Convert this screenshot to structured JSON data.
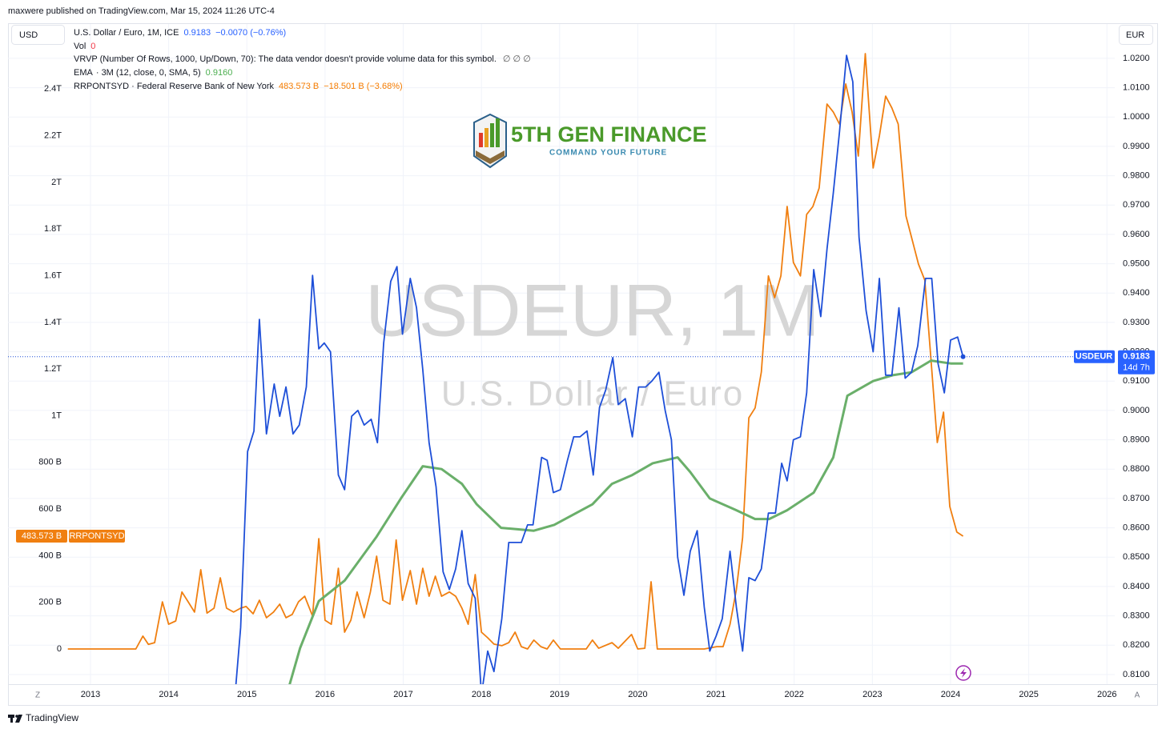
{
  "chart_data": {
    "type": "line",
    "header": "maxwere published on TradingView.com, Mar 15, 2024 11:26 UTC-4",
    "footer": "TradingView",
    "left_unit": "USD",
    "right_unit": "EUR",
    "watermark": [
      "USDEUR, 1M",
      "U.S. Dollar / Euro"
    ],
    "logo": {
      "title": "5TH GEN FINANCE",
      "subtitle": "COMMAND YOUR FUTURE"
    },
    "corner_labels": [
      "Z",
      "A"
    ],
    "legend": [
      {
        "text": "U.S. Dollar / Euro, 1M, ICE",
        "value": "0.9183",
        "change": "−0.0070 (−0.76%)"
      },
      {
        "text": "Vol",
        "value": "0"
      },
      {
        "text": "VRVP (Number Of Rows, 1000, Up/Down, 70): The data vendor doesn't provide volume data for this symbol.",
        "value": "∅  ∅  ∅"
      },
      {
        "text": "· 3M (12, close, 0, SMA, 5)",
        "value": "0.9160"
      },
      {
        "text": "RRPONTSYD · Federal Reserve Bank of New York",
        "value": "483.573 B",
        "change": "−18.501 B (−3.68%)"
      }
    ],
    "xlim": [
      2011.945,
      2026.1
    ],
    "xticks": [
      2013,
      2014,
      2015,
      2016,
      2017,
      2018,
      2019,
      2020,
      2021,
      2022,
      2023,
      2024,
      2025,
      2026
    ],
    "ylim": [
      -151,
      2679
    ],
    "yticks": [
      0,
      {
        "value": 200,
        "label": "200 B"
      },
      {
        "value": 400,
        "label": "400 B"
      },
      {
        "value": 600,
        "label": "600 B"
      },
      {
        "value": 800,
        "label": "800 B"
      },
      {
        "value": 1000,
        "label": "1T"
      },
      {
        "value": 1200,
        "label": "1.2T"
      },
      {
        "value": 1400,
        "label": "1.4T"
      },
      {
        "value": 1600,
        "label": "1.6T"
      },
      {
        "value": 1800,
        "label": "1.8T"
      },
      {
        "value": 2000,
        "label": "2T"
      },
      {
        "value": 2200,
        "label": "2.2T"
      },
      {
        "value": 2400,
        "label": "2.4T"
      }
    ],
    "y2lim": [
      0.8067,
      1.0317
    ],
    "y2ticks": [
      {
        "value": 0.81,
        "label": "0.8100"
      },
      {
        "value": 0.82,
        "label": "0.8200"
      },
      {
        "value": 0.83,
        "label": "0.8300"
      },
      {
        "value": 0.84,
        "label": "0.8400"
      },
      {
        "value": 0.85,
        "label": "0.8500"
      },
      {
        "value": 0.86,
        "label": "0.8600"
      },
      {
        "value": 0.87,
        "label": "0.8700"
      },
      {
        "value": 0.88,
        "label": "0.8800"
      },
      {
        "value": 0.89,
        "label": "0.8900"
      },
      {
        "value": 0.9,
        "label": "0.9000"
      },
      {
        "value": 0.91,
        "label": "0.9100"
      },
      {
        "value": 0.92,
        "label": "0.9200"
      },
      {
        "value": 0.93,
        "label": "0.9300"
      },
      {
        "value": 0.94,
        "label": "0.9400"
      },
      {
        "value": 0.95,
        "label": "0.9500"
      },
      {
        "value": 0.96,
        "label": "0.9600"
      },
      {
        "value": 0.97,
        "label": "0.9700"
      },
      {
        "value": 0.98,
        "label": "0.9800"
      },
      {
        "value": 0.99,
        "label": "0.9900"
      },
      {
        "value": 1.0,
        "label": "1.0000"
      },
      {
        "value": 1.01,
        "label": "1.0100"
      },
      {
        "value": 1.02,
        "label": "1.0200"
      }
    ],
    "grid": true,
    "series": [
      {
        "name": "USDEUR",
        "color": "#1e4fd8",
        "axis": "y2",
        "countdown": "14d 7h",
        "x": [
          2014.84,
          2014.92,
          2015.01,
          2015.09,
          2015.16,
          2015.25,
          2015.35,
          2015.42,
          2015.5,
          2015.59,
          2015.67,
          2015.76,
          2015.84,
          2015.92,
          2015.99,
          2016.07,
          2016.17,
          2016.25,
          2016.34,
          2016.42,
          2016.5,
          2016.59,
          2016.67,
          2016.75,
          2016.84,
          2016.92,
          2016.99,
          2017.09,
          2017.17,
          2017.25,
          2017.33,
          2017.42,
          2017.51,
          2017.59,
          2017.67,
          2017.75,
          2017.83,
          2017.92,
          2018.0,
          2018.08,
          2018.16,
          2018.26,
          2018.35,
          2018.43,
          2018.51,
          2018.59,
          2018.66,
          2018.77,
          2018.84,
          2018.92,
          2019.01,
          2019.1,
          2019.18,
          2019.26,
          2019.35,
          2019.43,
          2019.51,
          2019.59,
          2019.68,
          2019.75,
          2019.84,
          2019.93,
          2020.01,
          2020.1,
          2020.18,
          2020.27,
          2020.35,
          2020.43,
          2020.51,
          2020.59,
          2020.67,
          2020.76,
          2020.85,
          2020.92,
          2021.0,
          2021.08,
          2021.18,
          2021.26,
          2021.34,
          2021.42,
          2021.5,
          2021.58,
          2021.67,
          2021.76,
          2021.84,
          2021.91,
          2021.99,
          2022.08,
          2022.16,
          2022.25,
          2022.34,
          2022.42,
          2022.5,
          2022.58,
          2022.67,
          2022.75,
          2022.83,
          2022.92,
          2023.01,
          2023.09,
          2023.17,
          2023.25,
          2023.34,
          2023.42,
          2023.5,
          2023.58,
          2023.68,
          2023.76,
          2023.84,
          2023.92,
          2024.0,
          2024.09,
          2024.16
        ],
        "values": [
          0.8,
          0.826,
          0.886,
          0.893,
          0.931,
          0.892,
          0.909,
          0.898,
          0.908,
          0.892,
          0.895,
          0.908,
          0.946,
          0.921,
          0.923,
          0.92,
          0.878,
          0.873,
          0.898,
          0.9,
          0.895,
          0.897,
          0.889,
          0.923,
          0.944,
          0.949,
          0.926,
          0.945,
          0.935,
          0.914,
          0.889,
          0.874,
          0.845,
          0.839,
          0.846,
          0.859,
          0.841,
          0.836,
          0.803,
          0.818,
          0.811,
          0.829,
          0.855,
          0.855,
          0.855,
          0.861,
          0.861,
          0.884,
          0.883,
          0.872,
          0.873,
          0.883,
          0.891,
          0.891,
          0.893,
          0.878,
          0.901,
          0.907,
          0.918,
          0.902,
          0.904,
          0.891,
          0.908,
          0.908,
          0.91,
          0.913,
          0.9,
          0.89,
          0.85,
          0.837,
          0.852,
          0.859,
          0.833,
          0.818,
          0.823,
          0.829,
          0.852,
          0.833,
          0.818,
          0.843,
          0.842,
          0.846,
          0.865,
          0.865,
          0.882,
          0.876,
          0.89,
          0.891,
          0.906,
          0.948,
          0.932,
          0.955,
          0.974,
          0.995,
          1.021,
          1.012,
          0.959,
          0.934,
          0.92,
          0.945,
          0.912,
          0.912,
          0.935,
          0.911,
          0.913,
          0.922,
          0.945,
          0.945,
          0.916,
          0.906,
          0.924,
          0.925,
          0.9183
        ]
      },
      {
        "name": "RRPONTSYD",
        "color": "#f07f10",
        "last_label": "483.573 B",
        "x": [
          2012.71,
          2013.58,
          2013.67,
          2013.74,
          2013.82,
          2013.92,
          2014.0,
          2014.09,
          2014.17,
          2014.25,
          2014.33,
          2014.41,
          2014.49,
          2014.58,
          2014.66,
          2014.74,
          2014.83,
          2014.92,
          2014.99,
          2015.08,
          2015.16,
          2015.25,
          2015.34,
          2015.42,
          2015.5,
          2015.58,
          2015.66,
          2015.74,
          2015.84,
          2015.92,
          2016.0,
          2016.08,
          2016.17,
          2016.25,
          2016.33,
          2016.41,
          2016.5,
          2016.58,
          2016.66,
          2016.74,
          2016.83,
          2016.91,
          2016.99,
          2017.09,
          2017.17,
          2017.25,
          2017.33,
          2017.41,
          2017.49,
          2017.59,
          2017.67,
          2017.75,
          2017.83,
          2017.92,
          2018.0,
          2018.08,
          2018.16,
          2018.26,
          2018.35,
          2018.43,
          2018.51,
          2018.59,
          2018.67,
          2018.76,
          2018.84,
          2018.92,
          2019.01,
          2019.34,
          2019.42,
          2019.5,
          2019.67,
          2019.75,
          2019.92,
          2020.0,
          2020.09,
          2020.17,
          2020.25,
          2020.85,
          2021.01,
          2021.09,
          2021.18,
          2021.26,
          2021.34,
          2021.42,
          2021.5,
          2021.58,
          2021.67,
          2021.75,
          2021.83,
          2021.91,
          2021.99,
          2022.08,
          2022.16,
          2022.24,
          2022.32,
          2022.42,
          2022.5,
          2022.58,
          2022.66,
          2022.74,
          2022.82,
          2022.91,
          2023.01,
          2023.09,
          2023.17,
          2023.25,
          2023.33,
          2023.43,
          2023.51,
          2023.59,
          2023.67,
          2023.75,
          2023.83,
          2023.91,
          2023.99,
          2024.08,
          2024.16
        ],
        "values": [
          0,
          0,
          55,
          20,
          27,
          202,
          106,
          120,
          244,
          202,
          158,
          340,
          154,
          175,
          305,
          175,
          158,
          175,
          182,
          151,
          209,
          134,
          158,
          192,
          134,
          148,
          202,
          226,
          141,
          473,
          123,
          106,
          346,
          72,
          123,
          244,
          134,
          244,
          398,
          209,
          192,
          467,
          209,
          336,
          192,
          346,
          226,
          312,
          226,
          244,
          226,
          175,
          106,
          319,
          72,
          48,
          21,
          14,
          27,
          72,
          10,
          0,
          38,
          10,
          0,
          38,
          0,
          0,
          38,
          3,
          27,
          3,
          62,
          0,
          3,
          288,
          0,
          0,
          10,
          10,
          106,
          254,
          477,
          991,
          1033,
          1187,
          1599,
          1506,
          1599,
          1897,
          1657,
          1599,
          1863,
          1897,
          1976,
          2336,
          2302,
          2250,
          2422,
          2302,
          2113,
          2552,
          2062,
          2199,
          2370,
          2319,
          2250,
          1856,
          1753,
          1650,
          1581,
          1238,
          885,
          1015,
          611,
          501,
          483.573
        ]
      },
      {
        "name": "EMA",
        "color": "#6aaf6a",
        "axis": "y2",
        "x": [
          2015.53,
          2015.68,
          2015.92,
          2016.25,
          2016.66,
          2016.97,
          2017.25,
          2017.49,
          2017.75,
          2017.94,
          2018.25,
          2018.67,
          2018.93,
          2019.42,
          2019.67,
          2019.93,
          2020.19,
          2020.51,
          2020.67,
          2020.92,
          2021.26,
          2021.5,
          2021.68,
          2021.91,
          2022.25,
          2022.5,
          2022.68,
          2023.01,
          2023.26,
          2023.5,
          2023.75,
          2024.0,
          2024.16
        ],
        "values": [
          0.805,
          0.819,
          0.835,
          0.842,
          0.857,
          0.87,
          0.881,
          0.88,
          0.875,
          0.868,
          0.86,
          0.859,
          0.861,
          0.868,
          0.875,
          0.878,
          0.882,
          0.884,
          0.879,
          0.87,
          0.866,
          0.863,
          0.863,
          0.866,
          0.872,
          0.884,
          0.905,
          0.91,
          0.912,
          0.913,
          0.917,
          0.916,
          0.916
        ]
      }
    ]
  }
}
